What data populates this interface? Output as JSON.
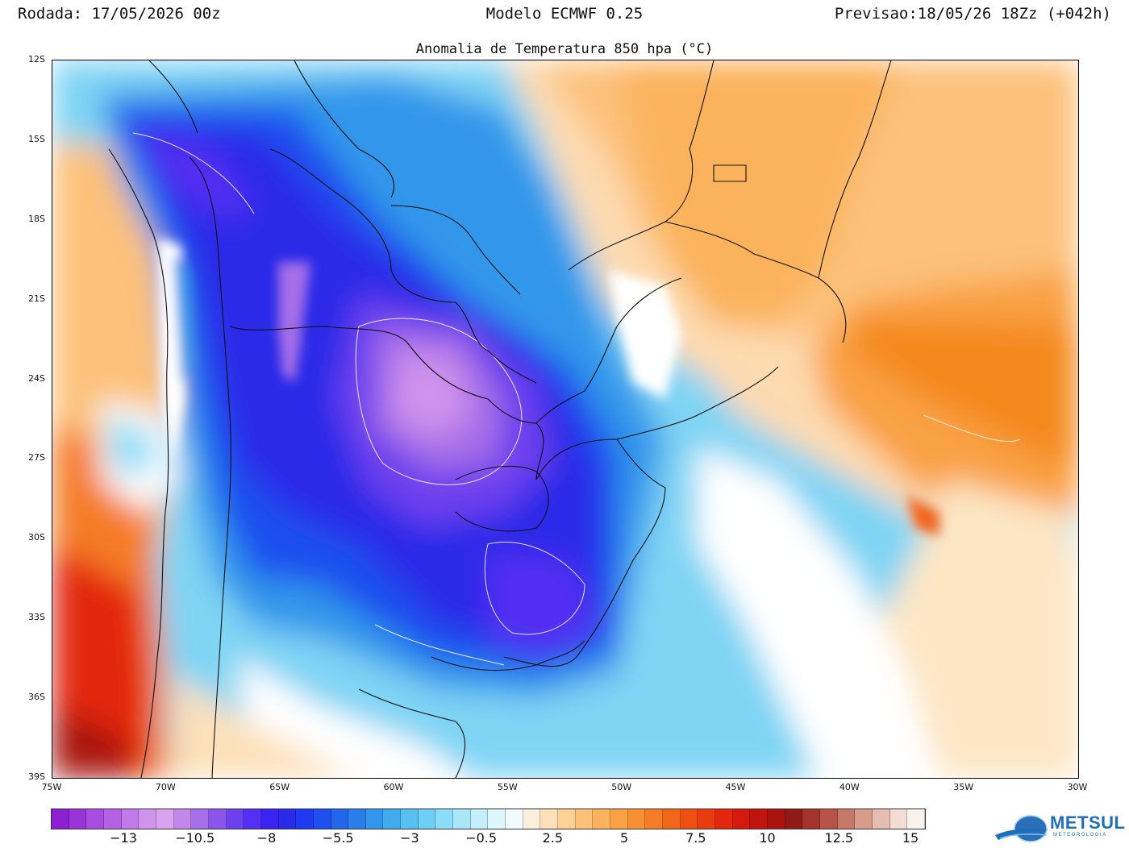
{
  "header": {
    "left": "Rodada: 17/05/2026 00z",
    "center": "Modelo ECMWF 0.25",
    "right": "Previsao:18/05/26 18Zz (+042h)"
  },
  "map": {
    "title": "Anomalia de Temperatura 850 hpa (°C)",
    "lat_labels": [
      "12S",
      "15S",
      "18S",
      "21S",
      "24S",
      "27S",
      "30S",
      "33S",
      "36S",
      "39S"
    ],
    "lon_labels": [
      "75W",
      "70W",
      "65W",
      "60W",
      "55W",
      "50W",
      "45W",
      "40W",
      "35W",
      "30W"
    ]
  },
  "colorbar": {
    "labels": [
      "−13",
      "−10.5",
      "−8",
      "−5.5",
      "−3",
      "−0.5",
      "2.5",
      "5",
      "7.5",
      "10",
      "12.5",
      "15"
    ],
    "colors": [
      "#8b1fd1",
      "#9a34d9",
      "#a84ddf",
      "#b561e3",
      "#c27ae8",
      "#cf93ec",
      "#d8a3ef",
      "#c387ea",
      "#a66ee8",
      "#8a55ea",
      "#6d3fed",
      "#522ff2",
      "#3a22f2",
      "#2a2ae8",
      "#1f3af0",
      "#1f4fee",
      "#2266ea",
      "#2a7ee8",
      "#3296ea",
      "#40acee",
      "#56c0f1",
      "#6ecff4",
      "#8bdcf6",
      "#a8e6f8",
      "#c4effa",
      "#ddf6fc",
      "#f1fbfe",
      "#fbeedd",
      "#fde0b8",
      "#fdd196",
      "#fcc177",
      "#fbb25c",
      "#f9a145",
      "#f88f33",
      "#f57b25",
      "#f2661a",
      "#ee5014",
      "#e93b10",
      "#e2270e",
      "#d41a0d",
      "#c0150e",
      "#a91411",
      "#8f1a16",
      "#a3342b",
      "#b75447",
      "#c87868",
      "#d89c8d",
      "#e6bdb1",
      "#f2dcd4",
      "#faf0ec"
    ]
  },
  "logo": {
    "name": "METSUL",
    "sub": "METEOROLOGIA"
  }
}
